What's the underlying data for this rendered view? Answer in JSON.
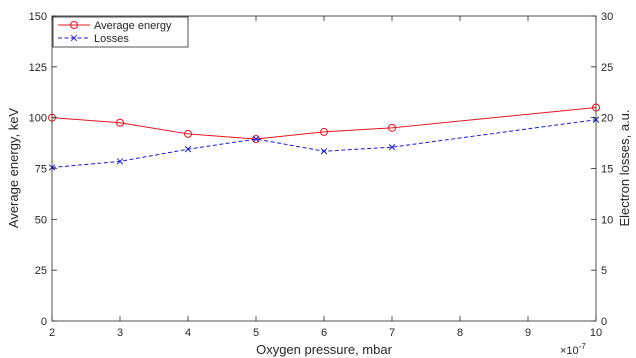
{
  "chart_data": {
    "type": "line",
    "xlabel": "Oxygen pressure, mbar",
    "x_multiplier_label": "×10",
    "x_multiplier_exponent": "-7",
    "ylabel_left": "Average energy, keV",
    "ylabel_right": "Electron losses, a.u.",
    "xlim": [
      2,
      10
    ],
    "ylim_left": [
      0,
      150
    ],
    "ylim_right": [
      0,
      30
    ],
    "x_ticks": [
      "2",
      "3",
      "4",
      "5",
      "6",
      "7",
      "8",
      "9",
      "10"
    ],
    "y_left_ticks": [
      "0",
      "25",
      "50",
      "75",
      "100",
      "125",
      "150"
    ],
    "y_right_ticks": [
      "0",
      "5",
      "10",
      "15",
      "20",
      "25",
      "30"
    ],
    "grid": false,
    "legend_position": "top-left",
    "series": [
      {
        "name": "Average energy",
        "axis": "left",
        "color": "#e8141e",
        "marker": "circle",
        "line": "solid",
        "x": [
          2,
          3,
          4,
          5,
          6,
          7,
          10
        ],
        "y": [
          100,
          97.5,
          92,
          89.5,
          93,
          95,
          105
        ]
      },
      {
        "name": "Losses",
        "axis": "right",
        "color": "#1a1adb",
        "marker": "x",
        "line": "dashed",
        "x": [
          2,
          3,
          4,
          5,
          6,
          7,
          10
        ],
        "y": [
          15.1,
          15.7,
          16.9,
          17.9,
          16.7,
          17.1,
          19.8
        ]
      }
    ]
  }
}
